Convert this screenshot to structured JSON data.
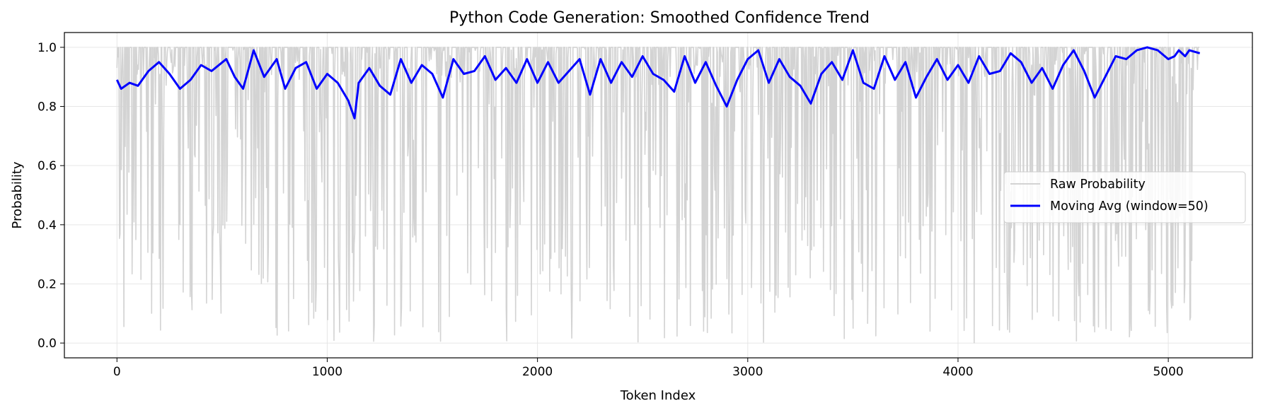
{
  "chart_data": {
    "type": "line",
    "title": "Python Code Generation: Smoothed Confidence Trend",
    "xlabel": "Token Index",
    "ylabel": "Probability",
    "xlim": [
      -250,
      5400
    ],
    "ylim": [
      -0.05,
      1.05
    ],
    "xticks": [
      0,
      1000,
      2000,
      3000,
      4000,
      5000
    ],
    "yticks": [
      0.0,
      0.2,
      0.4,
      0.6,
      0.8,
      1.0
    ],
    "xtick_labels": [
      "0",
      "1000",
      "2000",
      "3000",
      "4000",
      "5000"
    ],
    "ytick_labels": [
      "0.0",
      "0.2",
      "0.4",
      "0.6",
      "0.8",
      "1.0"
    ],
    "grid": true,
    "legend_position": "center-right",
    "series": [
      {
        "name": "Raw Probability",
        "color": "#d3d3d3",
        "style": "dense-oscillating",
        "x_range": [
          0,
          5150
        ],
        "y_range": [
          0.0,
          1.0
        ],
        "note_values": "per-token probability, mostly near 1.0 with frequent dips to 0.0"
      },
      {
        "name": "Moving Avg (window=50)",
        "color": "#0000ff",
        "x": [
          0,
          20,
          60,
          100,
          150,
          200,
          250,
          300,
          350,
          400,
          450,
          520,
          560,
          600,
          650,
          700,
          760,
          800,
          850,
          900,
          950,
          1000,
          1050,
          1100,
          1130,
          1150,
          1200,
          1250,
          1300,
          1350,
          1400,
          1450,
          1500,
          1550,
          1600,
          1650,
          1700,
          1750,
          1800,
          1850,
          1900,
          1950,
          2000,
          2050,
          2100,
          2150,
          2200,
          2250,
          2300,
          2350,
          2400,
          2450,
          2500,
          2550,
          2600,
          2650,
          2700,
          2750,
          2800,
          2850,
          2900,
          2950,
          3000,
          3050,
          3100,
          3150,
          3200,
          3250,
          3300,
          3350,
          3400,
          3450,
          3500,
          3550,
          3600,
          3650,
          3700,
          3750,
          3800,
          3850,
          3900,
          3950,
          4000,
          4050,
          4100,
          4150,
          4200,
          4250,
          4300,
          4350,
          4400,
          4450,
          4500,
          4550,
          4600,
          4650,
          4700,
          4750,
          4800,
          4850,
          4900,
          4950,
          5000,
          5030,
          5050,
          5080,
          5100,
          5150
        ],
        "y": [
          0.89,
          0.86,
          0.88,
          0.87,
          0.92,
          0.95,
          0.91,
          0.86,
          0.89,
          0.94,
          0.92,
          0.96,
          0.9,
          0.86,
          0.99,
          0.9,
          0.96,
          0.86,
          0.93,
          0.95,
          0.86,
          0.91,
          0.88,
          0.82,
          0.76,
          0.88,
          0.93,
          0.87,
          0.84,
          0.96,
          0.88,
          0.94,
          0.91,
          0.83,
          0.96,
          0.91,
          0.92,
          0.97,
          0.89,
          0.93,
          0.88,
          0.96,
          0.88,
          0.95,
          0.88,
          0.92,
          0.96,
          0.84,
          0.96,
          0.88,
          0.95,
          0.9,
          0.97,
          0.91,
          0.89,
          0.85,
          0.97,
          0.88,
          0.95,
          0.87,
          0.8,
          0.89,
          0.96,
          0.99,
          0.88,
          0.96,
          0.9,
          0.87,
          0.81,
          0.91,
          0.95,
          0.89,
          0.99,
          0.88,
          0.86,
          0.97,
          0.89,
          0.95,
          0.83,
          0.9,
          0.96,
          0.89,
          0.94,
          0.88,
          0.97,
          0.91,
          0.92,
          0.98,
          0.95,
          0.88,
          0.93,
          0.86,
          0.94,
          0.99,
          0.92,
          0.83,
          0.9,
          0.97,
          0.96,
          0.99,
          1.0,
          0.99,
          0.96,
          0.97,
          0.99,
          0.97,
          0.99,
          0.98
        ]
      }
    ]
  }
}
